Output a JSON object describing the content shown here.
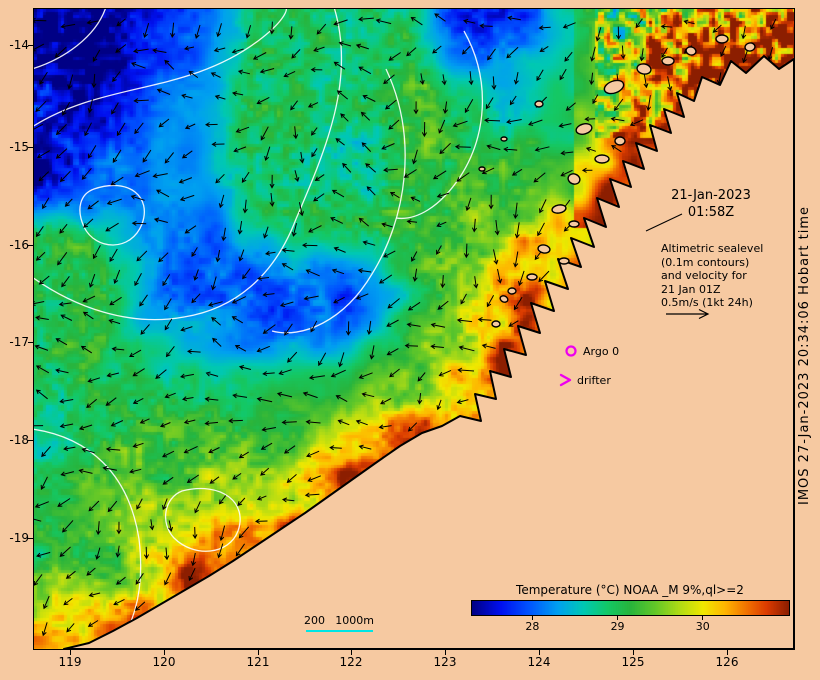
{
  "title_block": {
    "datetime_line1": "21-Jan-2023",
    "datetime_line2": "01:58Z"
  },
  "info_block": {
    "lines": [
      "Altimetric sealevel",
      "(0.1m contours)",
      "and velocity for",
      "21 Jan 01Z",
      "0.5m/s (1kt 24h)"
    ]
  },
  "markers": {
    "argo_label": "Argo 0",
    "drifter_label": "drifter",
    "marker_color": "#ee00ee"
  },
  "scalebar": {
    "label_left": "200",
    "label_right": "1000m",
    "line_color": "#00e5e5"
  },
  "colorbar": {
    "title": "Temperature (°C) NOAA _M 9%,ql>=2",
    "tick_labels": [
      "28",
      "29",
      "30"
    ],
    "range_min": 27.28,
    "range_max": 31.0,
    "colormap": [
      [
        0,
        "#000085"
      ],
      [
        0.09,
        "#0010f0"
      ],
      [
        0.18,
        "#0055ff"
      ],
      [
        0.27,
        "#00a0f0"
      ],
      [
        0.35,
        "#00c8b4"
      ],
      [
        0.43,
        "#14c864"
      ],
      [
        0.5,
        "#28b43c"
      ],
      [
        0.58,
        "#64c828"
      ],
      [
        0.66,
        "#b4dc14"
      ],
      [
        0.73,
        "#f0e800"
      ],
      [
        0.8,
        "#ffb400"
      ],
      [
        0.87,
        "#f07000"
      ],
      [
        0.93,
        "#dc3c00"
      ],
      [
        1,
        "#8c1e00"
      ]
    ]
  },
  "axes": {
    "x_tick_labels": [
      "119",
      "120",
      "121",
      "122",
      "123",
      "124",
      "125",
      "126"
    ],
    "y_tick_labels": [
      "-14",
      "-15",
      "-16",
      "-17",
      "-18",
      "-19"
    ]
  },
  "credit": "IMOS 27-Jan-2023 20:34:06 Hobart time",
  "colors": {
    "background": "#f6c9a1",
    "land": "#f6c9a1",
    "coastline": "#000000",
    "contour": "#ffffff",
    "vector": "#000000",
    "frame": "#000000",
    "text": "#000000"
  }
}
